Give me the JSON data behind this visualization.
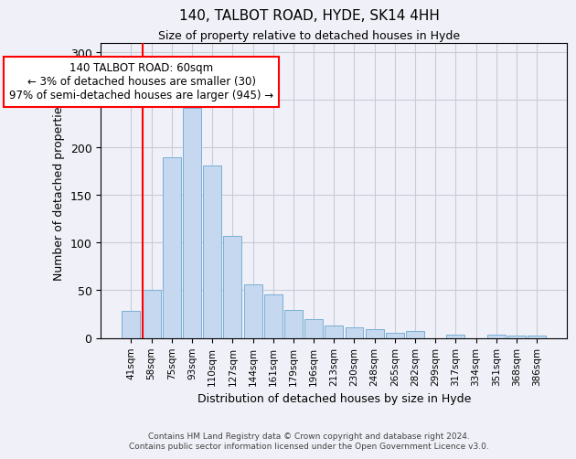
{
  "title": "140, TALBOT ROAD, HYDE, SK14 4HH",
  "subtitle": "Size of property relative to detached houses in Hyde",
  "xlabel": "Distribution of detached houses by size in Hyde",
  "ylabel": "Number of detached properties",
  "footer_line1": "Contains HM Land Registry data © Crown copyright and database right 2024.",
  "footer_line2": "Contains public sector information licensed under the Open Government Licence v3.0.",
  "bar_labels": [
    "41sqm",
    "58sqm",
    "75sqm",
    "93sqm",
    "110sqm",
    "127sqm",
    "144sqm",
    "161sqm",
    "179sqm",
    "196sqm",
    "213sqm",
    "230sqm",
    "248sqm",
    "265sqm",
    "282sqm",
    "299sqm",
    "317sqm",
    "334sqm",
    "351sqm",
    "368sqm",
    "386sqm"
  ],
  "bar_values": [
    28,
    50,
    190,
    242,
    181,
    107,
    56,
    46,
    29,
    20,
    13,
    11,
    9,
    5,
    7,
    0,
    3,
    0,
    3,
    2,
    2
  ],
  "bar_color": "#c5d8f0",
  "bar_edge_color": "#7aafd4",
  "annotation_text": "140 TALBOT ROAD: 60sqm\n← 3% of detached houses are smaller (30)\n97% of semi-detached houses are larger (945) →",
  "annotation_box_color": "white",
  "annotation_box_edge_color": "red",
  "vline_x_index": 1,
  "vline_color": "red",
  "ylim": [
    0,
    310
  ],
  "yticks": [
    0,
    50,
    100,
    150,
    200,
    250,
    300
  ],
  "background_color": "#f0f0f8",
  "grid_color": "#c8ccd8"
}
